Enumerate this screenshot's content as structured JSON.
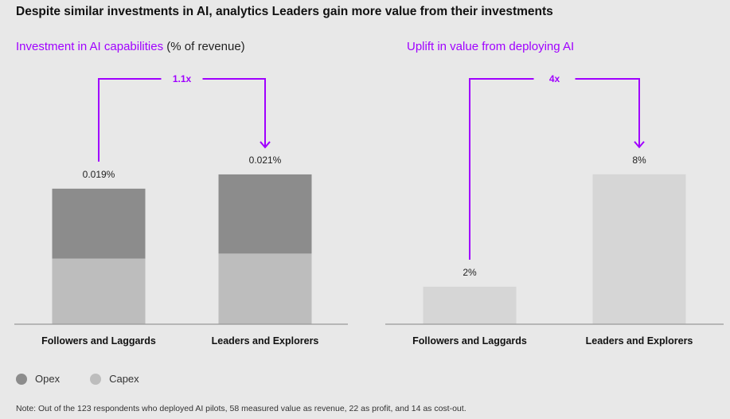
{
  "title": "Despite similar investments in AI, analytics Leaders gain more value from their investments",
  "colors": {
    "opex": "#8c8c8c",
    "capex": "#bdbdbd",
    "uplift": "#d6d6d6",
    "accent": "#a000ff",
    "background": "#e8e8e8"
  },
  "chart_data": [
    {
      "type": "bar",
      "title": "Investment in AI capabilities",
      "title_unit": "(% of revenue)",
      "categories": [
        "Followers and Laggards",
        "Leaders and Explorers"
      ],
      "stacked": true,
      "series": [
        {
          "name": "Capex",
          "values": [
            0.0092,
            0.0099
          ]
        },
        {
          "name": "Opex",
          "values": [
            0.0098,
            0.0111
          ]
        }
      ],
      "totals": [
        0.019,
        0.021
      ],
      "value_labels": [
        "0.019%",
        "0.021%"
      ],
      "ylim": [
        0,
        0.0335
      ],
      "comparison": {
        "label": "1.1x",
        "from": 0,
        "to": 1
      },
      "legend": {
        "position": "bottom-left",
        "items": [
          "Opex",
          "Capex"
        ]
      }
    },
    {
      "type": "bar",
      "title": "Uplift in value from deploying AI",
      "categories": [
        "Followers and Laggards",
        "Leaders and Explorers"
      ],
      "values": [
        2,
        8
      ],
      "value_labels": [
        "2%",
        "8%"
      ],
      "ylim": [
        0,
        12.75
      ],
      "comparison": {
        "label": "4x",
        "from": 0,
        "to": 1
      }
    }
  ],
  "legend_items": [
    {
      "name": "Opex",
      "color": "#8c8c8c"
    },
    {
      "name": "Capex",
      "color": "#bdbdbd"
    }
  ],
  "note": "Note: Out of the 123 respondents who deployed AI pilots, 58 measured value as revenue, 22 as profit, and 14 as cost-out."
}
